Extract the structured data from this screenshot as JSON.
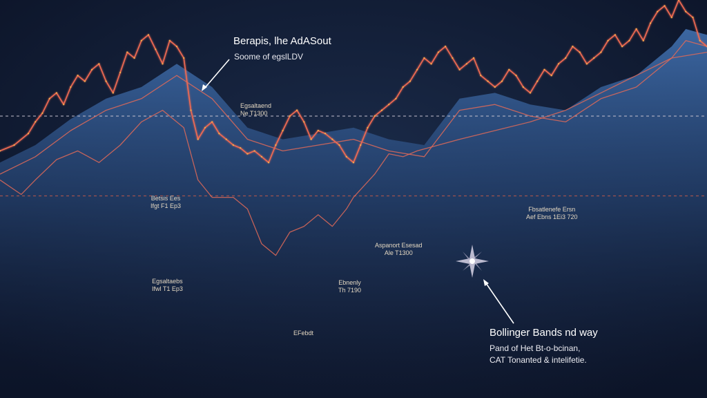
{
  "chart_data": {
    "type": "line",
    "title": "Berapis, lhe AdASout",
    "subtitle": "Soome of egslLDV",
    "xlabel": "",
    "ylabel": "",
    "xlim": [
      0,
      100
    ],
    "ylim": [
      0,
      100
    ],
    "grid": false,
    "levels": [
      {
        "kind": "dashed-horizontal",
        "y": 60,
        "color": "#c7c2cf"
      },
      {
        "kind": "dashed-horizontal",
        "y": 32.5,
        "color": "#c05a4a"
      }
    ],
    "series": [
      {
        "color": "#ef6a52",
        "style": "price-line",
        "x": [
          0,
          2,
          4,
          5,
          6,
          7,
          8,
          9,
          10,
          11,
          12,
          13,
          14,
          15,
          16,
          17,
          18,
          19,
          20,
          21,
          22,
          23,
          24,
          25,
          26,
          27,
          28,
          29,
          30,
          31,
          32,
          33,
          34,
          35,
          36,
          37,
          38,
          39,
          40,
          41,
          42,
          43,
          44,
          45,
          46,
          47,
          48,
          49,
          50,
          51,
          52,
          53,
          54,
          55,
          56,
          57,
          58,
          59,
          60,
          61,
          62,
          63,
          64,
          65,
          66,
          67,
          68,
          69,
          70,
          71,
          72,
          73,
          74,
          75,
          76,
          77,
          78,
          79,
          80,
          81,
          82,
          83,
          84,
          85,
          86,
          87,
          88,
          89,
          90,
          91,
          92,
          93,
          94,
          95,
          96,
          97,
          98,
          99,
          100
        ],
        "values": [
          48,
          50,
          54,
          58,
          61,
          66,
          68,
          64,
          70,
          74,
          72,
          76,
          78,
          72,
          68,
          75,
          82,
          80,
          86,
          88,
          83,
          78,
          86,
          84,
          80,
          62,
          52,
          56,
          58,
          54,
          52,
          50,
          49,
          47,
          48,
          46,
          44,
          50,
          55,
          60,
          62,
          58,
          52,
          55,
          54,
          52,
          50,
          46,
          44,
          50,
          56,
          60,
          62,
          64,
          66,
          70,
          72,
          76,
          80,
          78,
          82,
          84,
          80,
          76,
          78,
          80,
          74,
          72,
          70,
          72,
          76,
          74,
          70,
          68,
          72,
          76,
          74,
          78,
          80,
          84,
          82,
          78,
          80,
          82,
          86,
          88,
          84,
          86,
          90,
          86,
          92,
          96,
          98,
          94,
          100,
          96,
          94,
          86,
          84
        ]
      },
      {
        "color": "#e06a58",
        "style": "band-upper",
        "x": [
          0,
          5,
          10,
          15,
          20,
          25,
          30,
          35,
          40,
          45,
          50,
          55,
          60,
          65,
          70,
          75,
          80,
          85,
          90,
          95,
          97,
          100
        ],
        "values": [
          40,
          46,
          55,
          62,
          66,
          74,
          66,
          52,
          48,
          50,
          52,
          48,
          46,
          62,
          64,
          60,
          58,
          66,
          70,
          80,
          86,
          84
        ]
      },
      {
        "color": "#e06a58",
        "style": "band-lower",
        "x": [
          0,
          3,
          5,
          8,
          11,
          14,
          17,
          20,
          23,
          26,
          28,
          30,
          33,
          35,
          37,
          39,
          41,
          43,
          45,
          47,
          49,
          50,
          53,
          55,
          57,
          59,
          62,
          65,
          70,
          75,
          80,
          85,
          90,
          95,
          100
        ],
        "values": [
          38,
          33,
          38,
          45,
          48,
          44,
          50,
          58,
          62,
          56,
          38,
          32,
          32,
          28,
          16,
          12,
          20,
          22,
          26,
          22,
          28,
          32,
          40,
          47,
          46,
          48,
          50,
          52,
          55,
          58,
          62,
          68,
          74,
          80,
          82
        ]
      }
    ],
    "annotations": [
      {
        "lines": [
          "Egsaltaend",
          "Ne T1300"
        ]
      },
      {
        "lines": [
          "Betsis Ees",
          "Ifgt F1 Ep3"
        ]
      },
      {
        "lines": [
          "Egsaltaebs",
          "Ifwl T1 Ep3"
        ]
      },
      {
        "lines": [
          "Aspanort Esesad",
          "Ale T1300"
        ]
      },
      {
        "lines": [
          "Ebnenly",
          "Th 7190"
        ]
      },
      {
        "lines": [
          "Fbsatlenefe Ersn",
          "Aef Ebns 1Ei3 720"
        ]
      },
      {
        "lines": [
          "EFebdt"
        ]
      }
    ],
    "legend_block": {
      "title": "Bollinger Bands nd way",
      "line1": "Pand of Het Bt-o-bcinan,",
      "line2": "CAT Tonanted & intelifetie."
    }
  }
}
